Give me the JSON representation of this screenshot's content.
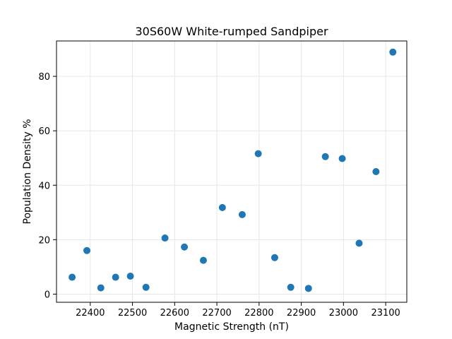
{
  "chart_data": {
    "type": "scatter",
    "title": "30S60W White-rumped Sandpiper",
    "xlabel": "Magnetic Strength (nT)",
    "ylabel": "Population Density %",
    "xlim": [
      22320,
      23150
    ],
    "ylim": [
      -3,
      93
    ],
    "xticks": [
      22400,
      22500,
      22600,
      22700,
      22800,
      22900,
      23000,
      23100
    ],
    "yticks": [
      0,
      20,
      40,
      60,
      80
    ],
    "grid": true,
    "marker_color": "#1f77b4",
    "points": [
      {
        "x": 22357,
        "y": 6.2
      },
      {
        "x": 22392,
        "y": 16.0
      },
      {
        "x": 22425,
        "y": 2.3
      },
      {
        "x": 22460,
        "y": 6.2
      },
      {
        "x": 22495,
        "y": 6.6
      },
      {
        "x": 22532,
        "y": 2.5
      },
      {
        "x": 22577,
        "y": 20.6
      },
      {
        "x": 22623,
        "y": 17.3
      },
      {
        "x": 22668,
        "y": 12.4
      },
      {
        "x": 22713,
        "y": 31.8
      },
      {
        "x": 22760,
        "y": 29.2
      },
      {
        "x": 22798,
        "y": 51.6
      },
      {
        "x": 22837,
        "y": 13.4
      },
      {
        "x": 22875,
        "y": 2.5
      },
      {
        "x": 22917,
        "y": 2.1
      },
      {
        "x": 22957,
        "y": 50.5
      },
      {
        "x": 22997,
        "y": 49.8
      },
      {
        "x": 23037,
        "y": 18.7
      },
      {
        "x": 23077,
        "y": 45.0
      },
      {
        "x": 23117,
        "y": 88.9
      }
    ]
  }
}
